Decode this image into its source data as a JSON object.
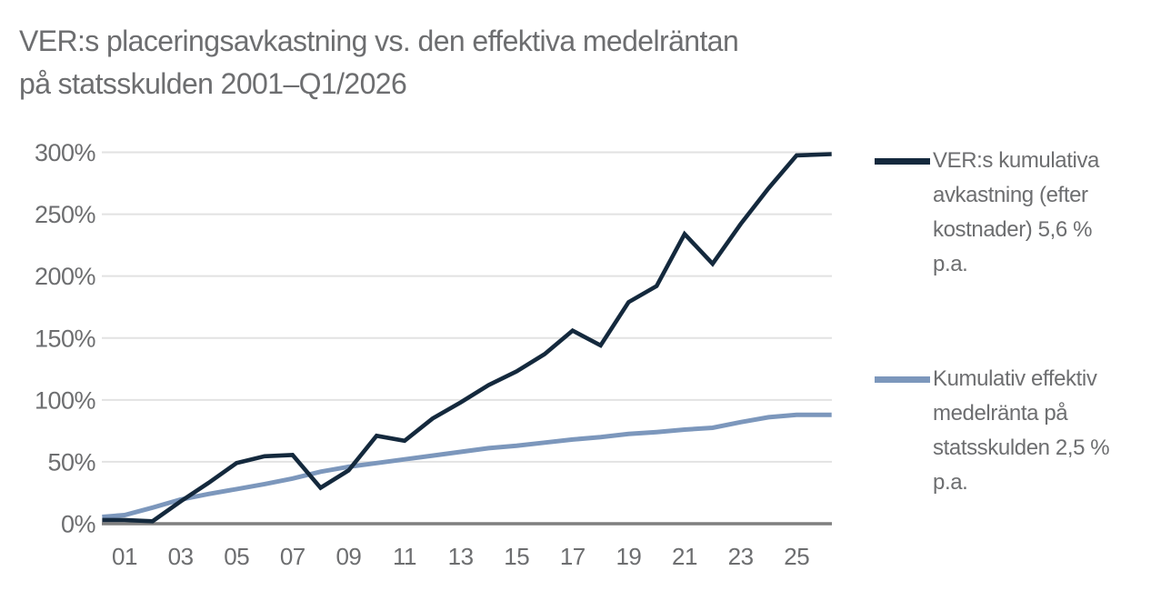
{
  "title": {
    "lines": [
      "VER:s placeringsavkastning vs. den effektiva medelräntan",
      "på statsskulden 2001–Q1/2026"
    ]
  },
  "colors": {
    "title_text": "#6d6e70",
    "axis_text": "#6d6e70",
    "gridline": "#e2e2e2",
    "axis_line": "#7f7f7f",
    "background": "#ffffff",
    "series_ver": "#14293d",
    "series_debt": "#7c97bc"
  },
  "legend": {
    "items": [
      {
        "id": "ver",
        "color": "#14293d",
        "lines": [
          "VER:s kumulativa",
          "avkastning (efter",
          "kostnader) 5,6 %",
          "p.a."
        ]
      },
      {
        "id": "debt",
        "color": "#7c97bc",
        "lines": [
          "Kumulativ effektiv",
          "medelränta på",
          "statsskulden 2,5 %",
          "p.a."
        ]
      }
    ]
  },
  "chart_data": {
    "type": "line",
    "title": "VER:s placeringsavkastning vs. den effektiva medelräntan på statsskulden 2001–Q1/2026",
    "xlabel": "",
    "ylabel": "",
    "ylim": [
      0,
      300
    ],
    "y_ticks": [
      0,
      50,
      100,
      150,
      200,
      250,
      300
    ],
    "y_tick_suffix": "%",
    "x_tick_years": [
      2001,
      2003,
      2005,
      2007,
      2009,
      2011,
      2013,
      2015,
      2017,
      2019,
      2021,
      2023,
      2025
    ],
    "x_tick_labels": [
      "01",
      "03",
      "05",
      "07",
      "09",
      "11",
      "13",
      "15",
      "17",
      "19",
      "21",
      "23",
      "25"
    ],
    "grid": "horizontal",
    "legend_position": "right",
    "x": [
      2000.2,
      2001,
      2002,
      2003,
      2004,
      2005,
      2006,
      2007,
      2008,
      2009,
      2010,
      2011,
      2012,
      2013,
      2014,
      2015,
      2016,
      2017,
      2018,
      2019,
      2020,
      2021,
      2022,
      2023,
      2024,
      2025,
      2026.25
    ],
    "series": [
      {
        "name": "VER:s kumulativa avkastning (efter kostnader) 5,6 % p.a.",
        "per_annum": "5,6 %",
        "color": "#14293d",
        "values": [
          3,
          3,
          2,
          18,
          33,
          49,
          54.5,
          55.5,
          29,
          43,
          71,
          67,
          85,
          98,
          112,
          123,
          137,
          156,
          144,
          179,
          192,
          234,
          210,
          242,
          271,
          297.5,
          298.5
        ]
      },
      {
        "name": "Kumulativ effektiv medelränta på statsskulden 2,5 % p.a.",
        "per_annum": "2,5 %",
        "color": "#7c97bc",
        "values": [
          5.5,
          7,
          13,
          19.5,
          24,
          28,
          32,
          36.5,
          42,
          46,
          49,
          52,
          55,
          58,
          61,
          63,
          65.5,
          68,
          70,
          72.5,
          74,
          76,
          77.5,
          82,
          86,
          88,
          88
        ]
      }
    ]
  }
}
